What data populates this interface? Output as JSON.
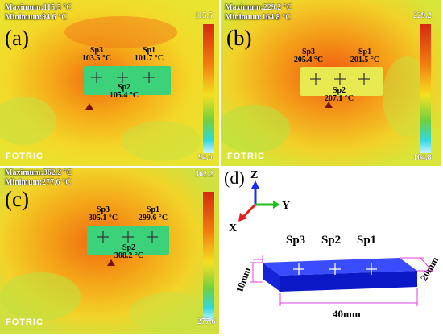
{
  "panels": [
    {
      "label": "(a)",
      "maximum": "Maximum:115.5 °C",
      "minimum": "Minimum:94.6 °C",
      "scale_max": "115.5",
      "scale_min": "94.6",
      "brand": "FOTRIC",
      "spots": [
        {
          "name": "Sp3",
          "temp": "103.5 °C"
        },
        {
          "name": "Sp1",
          "temp": "101.7 °C"
        },
        {
          "name": "Sp2",
          "temp": "105.4 °C"
        }
      ]
    },
    {
      "label": "(b)",
      "maximum": "Maximum:229.2 °C",
      "minimum": "Minimum:164.8 °C",
      "scale_max": "229.2",
      "scale_min": "164.8",
      "brand": "FOTRIC",
      "spots": [
        {
          "name": "Sp3",
          "temp": "205.4 °C"
        },
        {
          "name": "Sp1",
          "temp": "201.5 °C"
        },
        {
          "name": "Sp2",
          "temp": "207.1 °C"
        }
      ]
    },
    {
      "label": "(c)",
      "maximum": "Maximum:362.2 °C",
      "minimum": "Minimum:277.6 °C",
      "scale_max": "362.2",
      "scale_min": "277.6",
      "brand": "FOTRIC",
      "spots": [
        {
          "name": "Sp3",
          "temp": "305.1 °C"
        },
        {
          "name": "Sp1",
          "temp": "299.6 °C"
        },
        {
          "name": "Sp2",
          "temp": "308.2 °C"
        }
      ]
    }
  ],
  "diagram": {
    "label": "(d)",
    "axis_z": "Z",
    "axis_y": "Y",
    "axis_x": "X",
    "spots": [
      "Sp3",
      "Sp2",
      "Sp1"
    ],
    "dim_length": "40mm",
    "dim_width": "20mm",
    "dim_height": "10mm",
    "block_color": "#1a2cf0"
  }
}
